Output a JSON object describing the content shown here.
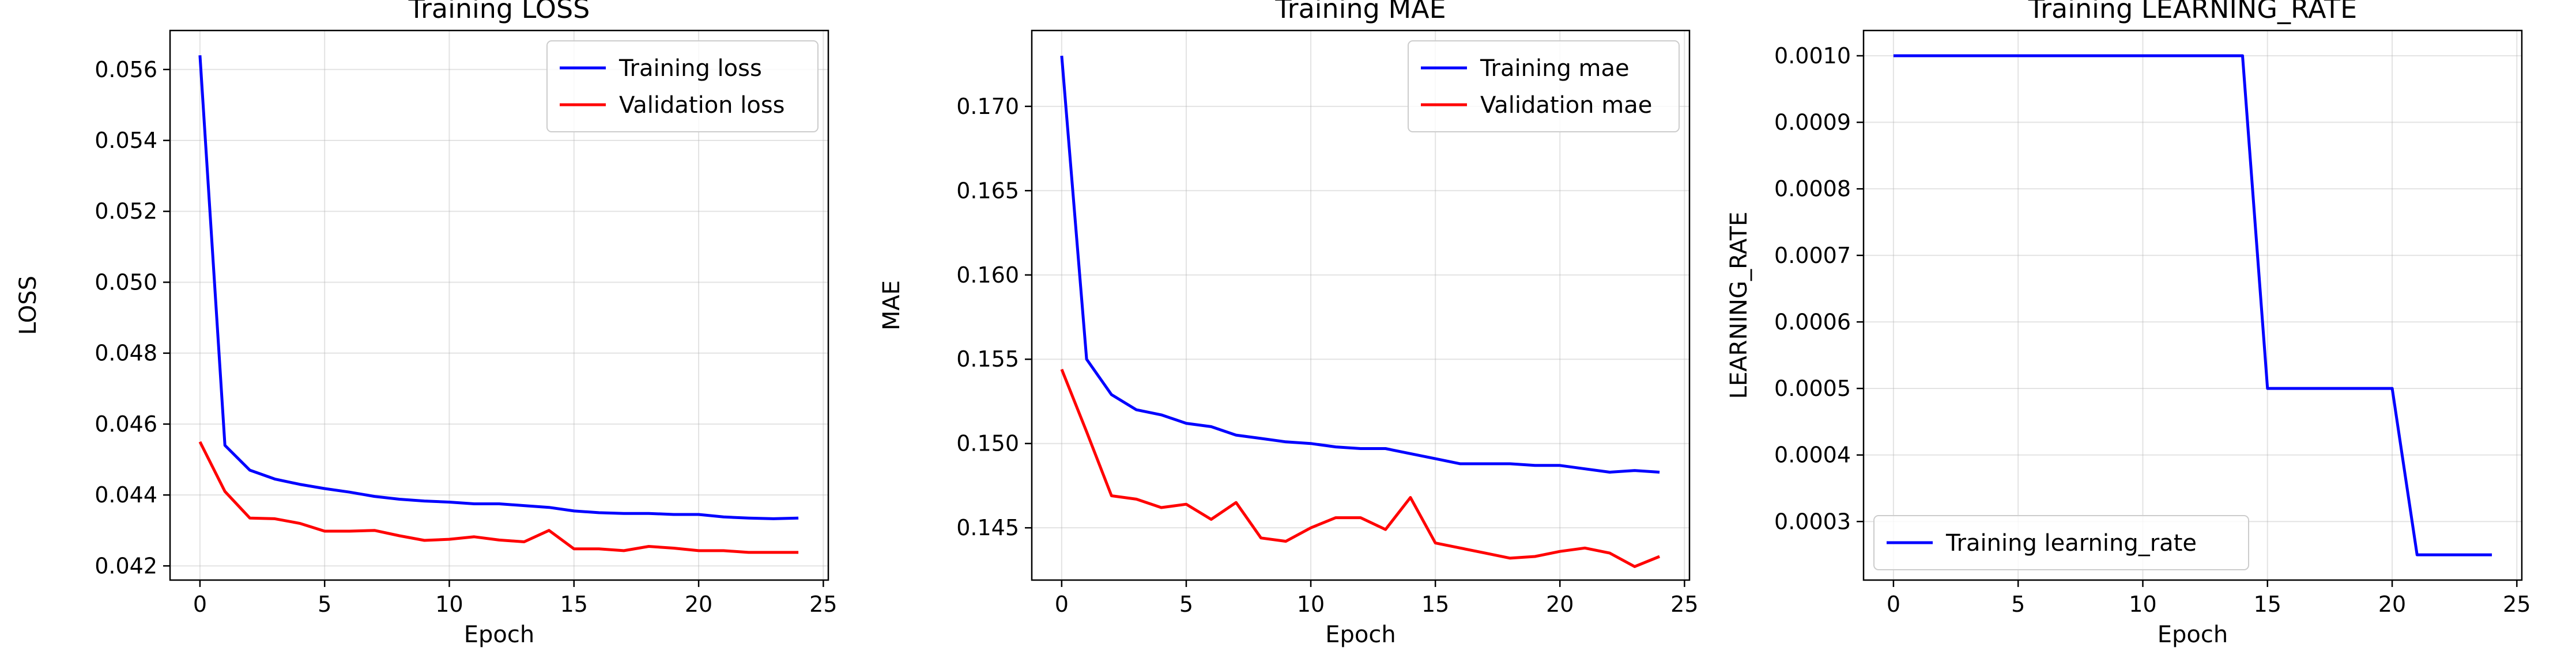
{
  "chart_data": [
    {
      "type": "line",
      "title": "Training LOSS",
      "xlabel": "Epoch",
      "ylabel": "LOSS",
      "xlim": [
        -1.2,
        25.2
      ],
      "ylim": [
        0.0416,
        0.0571
      ],
      "xticks": [
        0,
        5,
        10,
        15,
        20,
        25
      ],
      "yticks": [
        0.042,
        0.044,
        0.046,
        0.048,
        0.05,
        0.052,
        0.054,
        0.056
      ],
      "ytick_decimals": 3,
      "grid": true,
      "legend_position": "top-right",
      "x": [
        0,
        1,
        2,
        3,
        4,
        5,
        6,
        7,
        8,
        9,
        10,
        11,
        12,
        13,
        14,
        15,
        16,
        17,
        18,
        19,
        20,
        21,
        22,
        23,
        24
      ],
      "series": [
        {
          "name": "Training loss",
          "color": "#0000ff",
          "values": [
            0.0564,
            0.0454,
            0.0447,
            0.04445,
            0.0443,
            0.04418,
            0.04408,
            0.04396,
            0.04388,
            0.04383,
            0.0438,
            0.04375,
            0.04375,
            0.0437,
            0.04365,
            0.04355,
            0.0435,
            0.04348,
            0.04348,
            0.04345,
            0.04345,
            0.04338,
            0.04335,
            0.04333,
            0.04335
          ]
        },
        {
          "name": "Validation loss",
          "color": "#ff0000",
          "values": [
            0.0455,
            0.0441,
            0.04335,
            0.04333,
            0.0432,
            0.04298,
            0.04298,
            0.043,
            0.04285,
            0.04272,
            0.04275,
            0.04282,
            0.04273,
            0.04268,
            0.043,
            0.04248,
            0.04248,
            0.04243,
            0.04255,
            0.0425,
            0.04243,
            0.04243,
            0.04238,
            0.04238,
            0.04238
          ]
        }
      ]
    },
    {
      "type": "line",
      "title": "Training MAE",
      "xlabel": "Epoch",
      "ylabel": "MAE",
      "xlim": [
        -1.2,
        25.2
      ],
      "ylim": [
        0.1419,
        0.1745
      ],
      "xticks": [
        0,
        5,
        10,
        15,
        20,
        25
      ],
      "yticks": [
        0.145,
        0.15,
        0.155,
        0.16,
        0.165,
        0.17
      ],
      "ytick_decimals": 3,
      "grid": true,
      "legend_position": "top-right",
      "x": [
        0,
        1,
        2,
        3,
        4,
        5,
        6,
        7,
        8,
        9,
        10,
        11,
        12,
        13,
        14,
        15,
        16,
        17,
        18,
        19,
        20,
        21,
        22,
        23,
        24
      ],
      "series": [
        {
          "name": "Training mae",
          "color": "#0000ff",
          "values": [
            0.173,
            0.155,
            0.1529,
            0.152,
            0.1517,
            0.1512,
            0.151,
            0.1505,
            0.1503,
            0.1501,
            0.15,
            0.1498,
            0.1497,
            0.1497,
            0.1494,
            0.1491,
            0.1488,
            0.1488,
            0.1488,
            0.1487,
            0.1487,
            0.1485,
            0.1483,
            0.1484,
            0.1483
          ]
        },
        {
          "name": "Validation mae",
          "color": "#ff0000",
          "values": [
            0.1544,
            0.1507,
            0.1469,
            0.1467,
            0.1462,
            0.1464,
            0.1455,
            0.1465,
            0.1444,
            0.1442,
            0.145,
            0.1456,
            0.1456,
            0.1449,
            0.1468,
            0.1441,
            0.1438,
            0.1435,
            0.1432,
            0.1433,
            0.1436,
            0.1438,
            0.1435,
            0.1427,
            0.1433
          ]
        }
      ]
    },
    {
      "type": "line",
      "title": "Training LEARNING_RATE",
      "xlabel": "Epoch",
      "ylabel": "LEARNING_RATE",
      "xlim": [
        -1.2,
        25.2
      ],
      "ylim": [
        0.000212,
        0.001038
      ],
      "xticks": [
        0,
        5,
        10,
        15,
        20,
        25
      ],
      "yticks": [
        0.0003,
        0.0004,
        0.0005,
        0.0006,
        0.0007,
        0.0008,
        0.0009,
        0.001
      ],
      "ytick_decimals": 4,
      "grid": true,
      "legend_position": "bottom-left",
      "x": [
        0,
        1,
        2,
        3,
        4,
        5,
        6,
        7,
        8,
        9,
        10,
        11,
        12,
        13,
        14,
        15,
        16,
        17,
        18,
        19,
        20,
        21,
        22,
        23,
        24
      ],
      "series": [
        {
          "name": "Training learning_rate",
          "color": "#0000ff",
          "values": [
            0.001,
            0.001,
            0.001,
            0.001,
            0.001,
            0.001,
            0.001,
            0.001,
            0.001,
            0.001,
            0.001,
            0.001,
            0.001,
            0.001,
            0.001,
            0.0005,
            0.0005,
            0.0005,
            0.0005,
            0.0005,
            0.0005,
            0.00025,
            0.00025,
            0.00025,
            0.00025
          ]
        }
      ]
    }
  ]
}
